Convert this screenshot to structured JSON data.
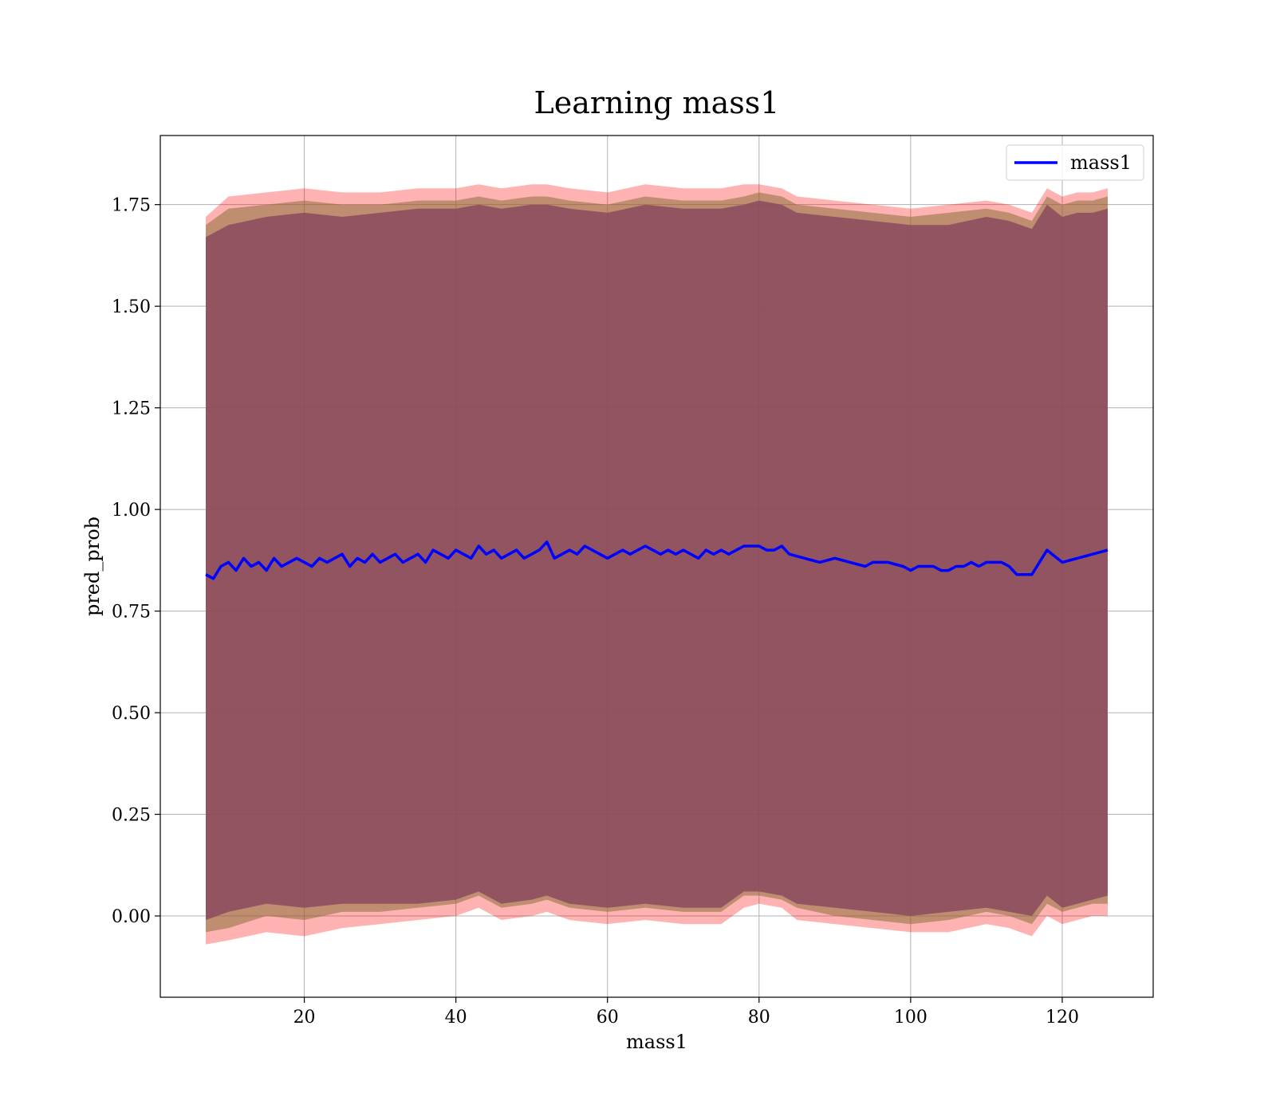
{
  "chart_data": {
    "type": "line",
    "title": "Learning mass1",
    "xlabel": "mass1",
    "ylabel": "pred_prob",
    "xlim": [
      1,
      132
    ],
    "ylim": [
      -0.2,
      1.92
    ],
    "xticks": [
      20,
      40,
      60,
      80,
      100,
      120
    ],
    "xtick_labels": [
      "20",
      "40",
      "60",
      "80",
      "100",
      "120"
    ],
    "yticks": [
      0.0,
      0.25,
      0.5,
      0.75,
      1.0,
      1.25,
      1.5,
      1.75
    ],
    "ytick_labels": [
      "0.00",
      "0.25",
      "0.50",
      "0.75",
      "1.00",
      "1.25",
      "1.50",
      "1.75"
    ],
    "grid": true,
    "legend": {
      "position": "top-right",
      "entries": [
        "mass1"
      ]
    },
    "colors": {
      "line": "#0000ff",
      "band_outer": "#ff0000",
      "band_mid": "#8b6f3a",
      "band_inner": "#8b4a5e",
      "grid": "#b0b0b0"
    },
    "series": [
      {
        "name": "mass1",
        "x": [
          7,
          8,
          9,
          10,
          11,
          12,
          13,
          14,
          15,
          16,
          17,
          18,
          19,
          20,
          21,
          22,
          23,
          24,
          25,
          26,
          27,
          28,
          29,
          30,
          31,
          32,
          33,
          34,
          35,
          36,
          37,
          38,
          39,
          40,
          41,
          42,
          43,
          44,
          45,
          46,
          47,
          48,
          49,
          50,
          51,
          52,
          53,
          54,
          55,
          56,
          57,
          58,
          59,
          60,
          61,
          62,
          63,
          64,
          65,
          66,
          67,
          68,
          69,
          70,
          71,
          72,
          73,
          74,
          75,
          76,
          77,
          78,
          79,
          80,
          81,
          82,
          83,
          84,
          86,
          88,
          90,
          92,
          94,
          95,
          97,
          99,
          100,
          101,
          103,
          104,
          105,
          106,
          107,
          108,
          109,
          110,
          111,
          112,
          113,
          114,
          116,
          118,
          120,
          122,
          124,
          126
        ],
        "y": [
          0.84,
          0.83,
          0.86,
          0.87,
          0.85,
          0.88,
          0.86,
          0.87,
          0.85,
          0.88,
          0.86,
          0.87,
          0.88,
          0.87,
          0.86,
          0.88,
          0.87,
          0.88,
          0.89,
          0.86,
          0.88,
          0.87,
          0.89,
          0.87,
          0.88,
          0.89,
          0.87,
          0.88,
          0.89,
          0.87,
          0.9,
          0.89,
          0.88,
          0.9,
          0.89,
          0.88,
          0.91,
          0.89,
          0.9,
          0.88,
          0.89,
          0.9,
          0.88,
          0.89,
          0.9,
          0.92,
          0.88,
          0.89,
          0.9,
          0.89,
          0.91,
          0.9,
          0.89,
          0.88,
          0.89,
          0.9,
          0.89,
          0.9,
          0.91,
          0.9,
          0.89,
          0.9,
          0.89,
          0.9,
          0.89,
          0.88,
          0.9,
          0.89,
          0.9,
          0.89,
          0.9,
          0.91,
          0.91,
          0.91,
          0.9,
          0.9,
          0.91,
          0.89,
          0.88,
          0.87,
          0.88,
          0.87,
          0.86,
          0.87,
          0.87,
          0.86,
          0.85,
          0.86,
          0.86,
          0.85,
          0.85,
          0.86,
          0.86,
          0.87,
          0.86,
          0.87,
          0.87,
          0.87,
          0.86,
          0.84,
          0.84,
          0.9,
          0.87,
          0.88,
          0.89,
          0.9
        ]
      }
    ],
    "bands": [
      {
        "x": [
          7,
          10,
          15,
          20,
          25,
          30,
          35,
          40,
          43,
          46,
          50,
          52,
          55,
          60,
          65,
          70,
          75,
          78,
          80,
          83,
          85,
          90,
          95,
          100,
          105,
          110,
          113,
          116,
          118,
          120,
          122,
          124,
          126
        ],
        "lower": [
          -0.07,
          -0.06,
          -0.04,
          -0.05,
          -0.03,
          -0.02,
          -0.01,
          0.0,
          0.02,
          -0.01,
          0.0,
          0.01,
          -0.01,
          -0.02,
          -0.01,
          -0.02,
          -0.02,
          0.02,
          0.03,
          0.02,
          -0.01,
          -0.02,
          -0.03,
          -0.04,
          -0.04,
          -0.02,
          -0.03,
          -0.05,
          0.0,
          -0.02,
          -0.01,
          0.0,
          0.0
        ],
        "upper": [
          1.72,
          1.77,
          1.78,
          1.79,
          1.78,
          1.78,
          1.79,
          1.79,
          1.8,
          1.79,
          1.8,
          1.8,
          1.79,
          1.78,
          1.8,
          1.79,
          1.79,
          1.8,
          1.8,
          1.79,
          1.77,
          1.76,
          1.75,
          1.74,
          1.75,
          1.76,
          1.75,
          1.73,
          1.79,
          1.77,
          1.78,
          1.78,
          1.79
        ]
      },
      {
        "x": [
          7,
          10,
          15,
          20,
          25,
          30,
          35,
          40,
          43,
          46,
          50,
          52,
          55,
          60,
          65,
          70,
          75,
          78,
          80,
          83,
          85,
          90,
          95,
          100,
          105,
          110,
          113,
          116,
          118,
          120,
          122,
          124,
          126
        ],
        "lower": [
          -0.04,
          -0.03,
          0.0,
          -0.01,
          0.01,
          0.01,
          0.02,
          0.03,
          0.05,
          0.02,
          0.03,
          0.04,
          0.02,
          0.01,
          0.02,
          0.01,
          0.01,
          0.05,
          0.05,
          0.04,
          0.02,
          0.0,
          -0.01,
          -0.02,
          -0.01,
          0.01,
          0.0,
          -0.02,
          0.03,
          0.01,
          0.02,
          0.03,
          0.03
        ],
        "upper": [
          1.7,
          1.74,
          1.75,
          1.76,
          1.75,
          1.75,
          1.76,
          1.76,
          1.77,
          1.76,
          1.77,
          1.77,
          1.76,
          1.75,
          1.77,
          1.76,
          1.76,
          1.77,
          1.78,
          1.77,
          1.75,
          1.74,
          1.73,
          1.72,
          1.73,
          1.74,
          1.73,
          1.71,
          1.77,
          1.75,
          1.76,
          1.76,
          1.77
        ]
      },
      {
        "x": [
          7,
          10,
          15,
          20,
          25,
          30,
          35,
          40,
          43,
          46,
          50,
          52,
          55,
          60,
          65,
          70,
          75,
          78,
          80,
          83,
          85,
          90,
          95,
          100,
          105,
          110,
          113,
          116,
          118,
          120,
          122,
          124,
          126
        ],
        "lower": [
          -0.01,
          0.01,
          0.03,
          0.02,
          0.03,
          0.03,
          0.03,
          0.04,
          0.06,
          0.03,
          0.04,
          0.05,
          0.03,
          0.02,
          0.03,
          0.02,
          0.02,
          0.06,
          0.06,
          0.05,
          0.03,
          0.02,
          0.01,
          0.0,
          0.01,
          0.02,
          0.01,
          0.0,
          0.05,
          0.02,
          0.03,
          0.04,
          0.05
        ],
        "upper": [
          1.67,
          1.7,
          1.72,
          1.73,
          1.72,
          1.73,
          1.74,
          1.74,
          1.75,
          1.74,
          1.75,
          1.75,
          1.74,
          1.73,
          1.75,
          1.74,
          1.74,
          1.75,
          1.76,
          1.75,
          1.73,
          1.72,
          1.71,
          1.7,
          1.7,
          1.72,
          1.71,
          1.69,
          1.75,
          1.72,
          1.73,
          1.73,
          1.74
        ]
      }
    ]
  }
}
